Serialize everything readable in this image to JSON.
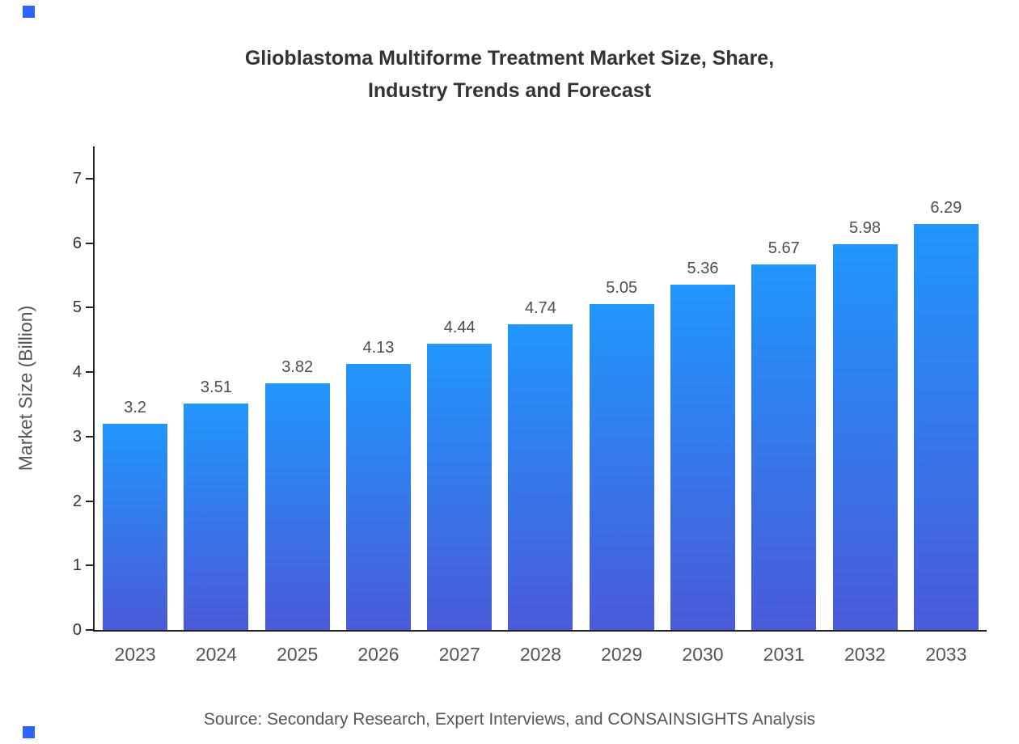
{
  "chart_data": {
    "type": "bar",
    "title": "Glioblastoma Multiforme Treatment Market Size, Share, Industry Trends and Forecast",
    "categories": [
      "2023",
      "2024",
      "2025",
      "2026",
      "2027",
      "2028",
      "2029",
      "2030",
      "2031",
      "2032",
      "2033"
    ],
    "values": [
      3.2,
      3.51,
      3.82,
      4.13,
      4.44,
      4.74,
      5.05,
      5.36,
      5.67,
      5.98,
      6.29
    ],
    "xlabel": "",
    "ylabel": "Market Size (Billion)",
    "ylim": [
      0,
      7.5
    ],
    "yticks": [
      0,
      1,
      2,
      3,
      4,
      5,
      6,
      7
    ],
    "grid": false,
    "legend": false,
    "source": "Source: Secondary Research, Expert Interviews, and CONSAINSIGHTS Analysis",
    "colors": {
      "bar_gradient_top": "#2196fc",
      "bar_gradient_bottom": "#4a5ad8",
      "accent_mark": "#2e62f9",
      "title_text": "#333333",
      "axis_text": "#555555"
    }
  }
}
